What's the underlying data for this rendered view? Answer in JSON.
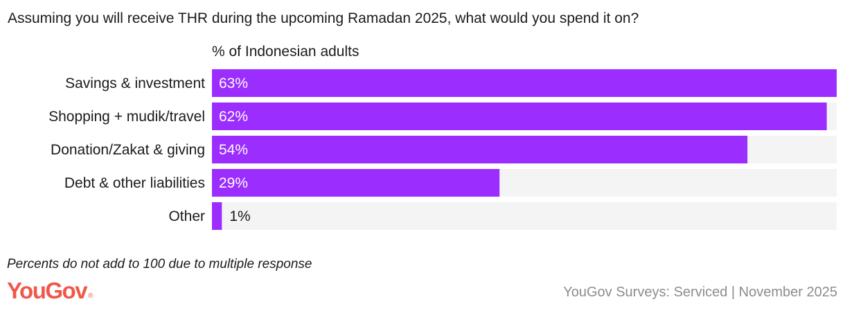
{
  "header": {
    "title": "Assuming you will receive THR during the upcoming Ramadan 2025, what would you spend it on?",
    "subtitle": "% of Indonesian adults"
  },
  "chart_data": {
    "type": "bar",
    "orientation": "horizontal",
    "categories": [
      "Savings & investment",
      "Shopping + mudik/travel",
      "Donation/Zakat & giving",
      "Debt & other liabilities",
      "Other"
    ],
    "values": [
      63,
      62,
      54,
      29,
      1
    ],
    "value_labels": [
      "63%",
      "62%",
      "54%",
      "29%",
      "1%"
    ],
    "xlim": [
      0,
      63
    ],
    "unit": "%",
    "grid": false,
    "legend": "none"
  },
  "footer": {
    "note": "Percents do not add to 100 due to multiple response",
    "logo_text": "YouGov",
    "logo_mark": "®",
    "source": "YouGov Surveys: Serviced | November 2025"
  },
  "colors": {
    "bar": "#9b2dff",
    "track": "#f4f4f4",
    "text": "#1a1a1a",
    "label_on_bar": "#ffffff",
    "logo": "#f0574a",
    "source": "#8c8c8c"
  }
}
